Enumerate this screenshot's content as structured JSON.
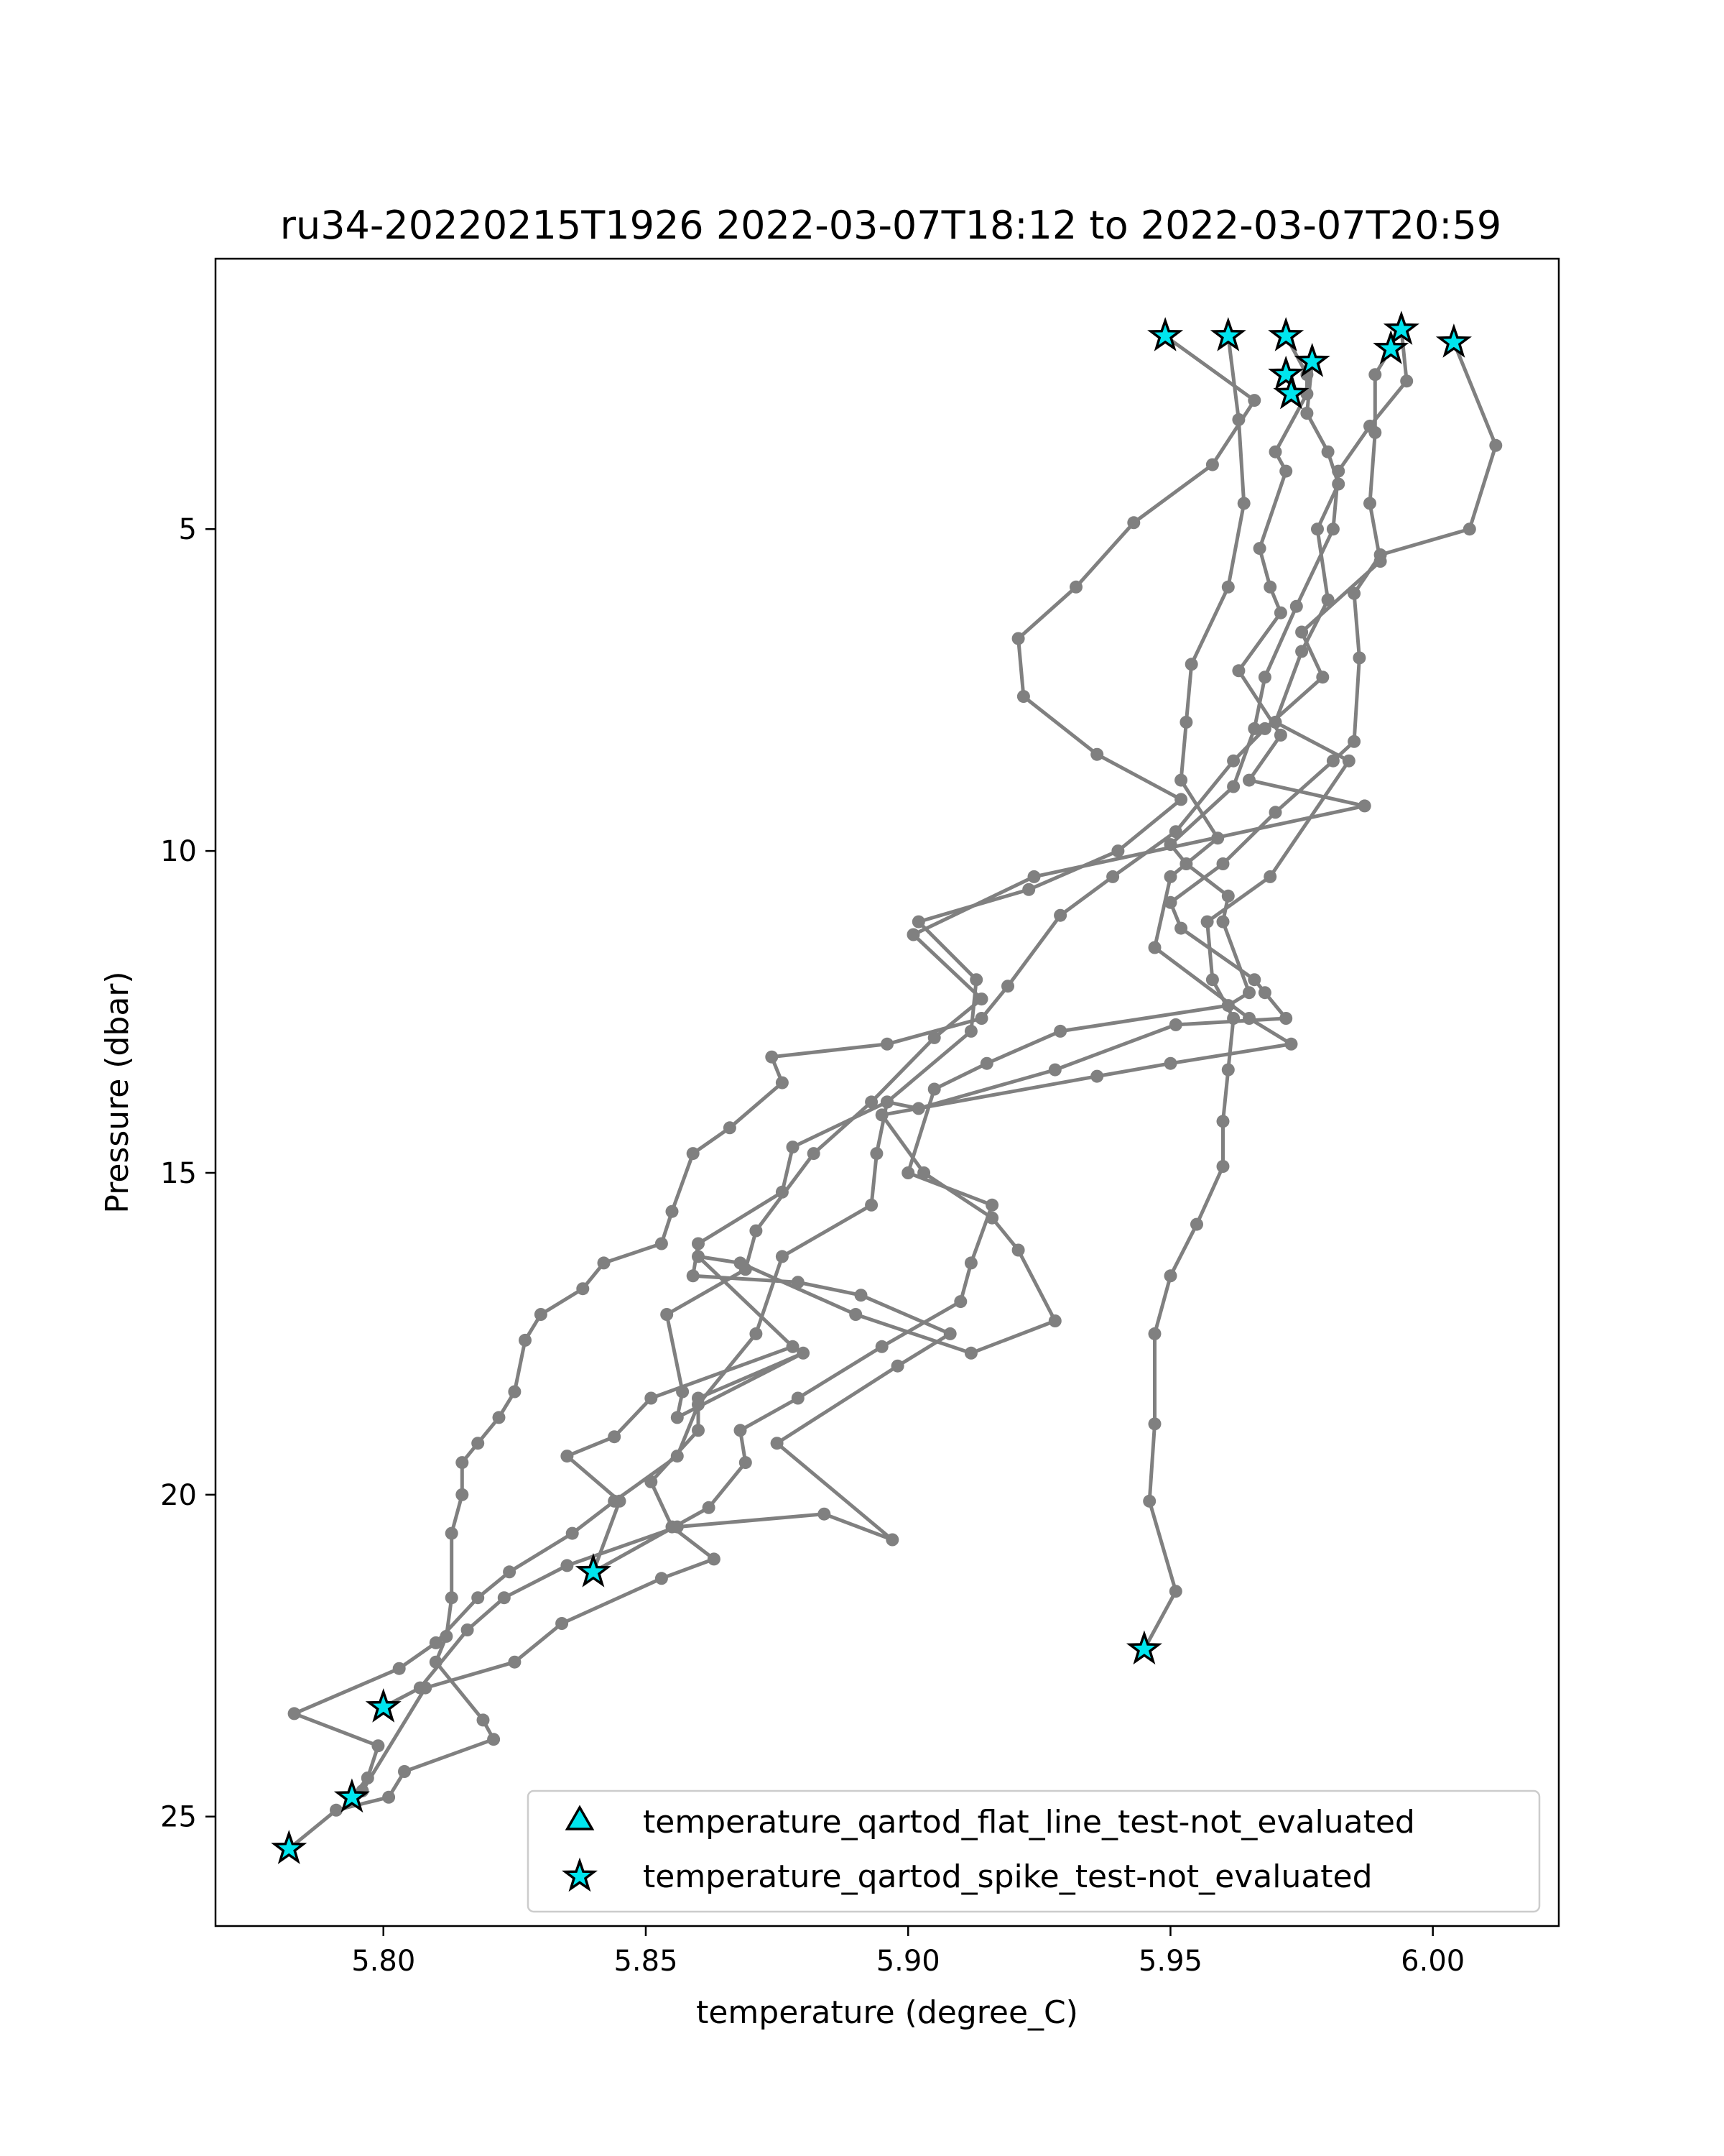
{
  "chart_data": {
    "type": "line",
    "title": "ru34-20220215T1926 2022-03-07T18:12 to 2022-03-07T20:59",
    "xlabel": "temperature (degree_C)",
    "ylabel": "Pressure (dbar)",
    "xlim": [
      5.768,
      6.024
    ],
    "ylim": [
      26.7,
      0.8
    ],
    "y_inverted": true,
    "x_ticks": [
      5.8,
      5.85,
      5.9,
      5.95,
      6.0
    ],
    "x_tick_labels": [
      "5.80",
      "5.85",
      "5.90",
      "5.95",
      "6.00"
    ],
    "y_ticks": [
      5,
      10,
      15,
      20,
      25
    ],
    "y_tick_labels": [
      "5",
      "10",
      "15",
      "20",
      "25"
    ],
    "grid": false,
    "legend_position": "lower-right",
    "colors": {
      "line": "#808080",
      "marker": "#808080",
      "flag_fill": "#00e5ee",
      "flag_edge": "#000000"
    },
    "legend": [
      {
        "marker": "triangle",
        "label": "temperature_qartod_flat_line_test-not_evaluated"
      },
      {
        "marker": "star",
        "label": "temperature_qartod_spike_test-not_evaluated"
      }
    ],
    "series": [
      {
        "points": [
          [
            5.949,
            2.0
          ],
          [
            5.966,
            3.0
          ],
          [
            5.958,
            4.0
          ],
          [
            5.943,
            4.9
          ],
          [
            5.932,
            5.9
          ],
          [
            5.921,
            6.7
          ],
          [
            5.922,
            7.6
          ],
          [
            5.936,
            8.5
          ],
          [
            5.952,
            9.2
          ],
          [
            5.94,
            10.0
          ],
          [
            5.923,
            10.6
          ],
          [
            5.902,
            11.1
          ],
          [
            5.913,
            12.0
          ],
          [
            5.912,
            12.8
          ],
          [
            5.896,
            13.9
          ],
          [
            5.894,
            14.7
          ],
          [
            5.893,
            15.5
          ],
          [
            5.876,
            16.3
          ],
          [
            5.871,
            17.5
          ],
          [
            5.86,
            18.6
          ],
          [
            5.856,
            19.4
          ],
          [
            5.844,
            20.1
          ],
          [
            5.836,
            20.6
          ],
          [
            5.824,
            21.2
          ],
          [
            5.818,
            21.6
          ],
          [
            5.81,
            22.3
          ],
          [
            5.803,
            22.7
          ],
          [
            5.783,
            23.4
          ],
          [
            5.799,
            23.9
          ],
          [
            5.797,
            24.4
          ],
          [
            5.794,
            24.7
          ]
        ]
      },
      {
        "points": [
          [
            5.961,
            2.0
          ],
          [
            5.963,
            3.3
          ],
          [
            5.964,
            4.6
          ],
          [
            5.961,
            5.9
          ],
          [
            5.954,
            7.1
          ],
          [
            5.953,
            8.0
          ],
          [
            5.952,
            8.9
          ],
          [
            5.959,
            9.8
          ],
          [
            5.95,
            10.4
          ],
          [
            5.947,
            11.5
          ],
          [
            5.965,
            12.6
          ],
          [
            5.973,
            13.0
          ],
          [
            5.95,
            13.3
          ],
          [
            5.936,
            13.5
          ],
          [
            5.895,
            14.1
          ],
          [
            5.903,
            15.0
          ],
          [
            5.916,
            15.7
          ],
          [
            5.921,
            16.2
          ],
          [
            5.928,
            17.3
          ],
          [
            5.912,
            17.8
          ],
          [
            5.89,
            17.2
          ],
          [
            5.868,
            16.4
          ],
          [
            5.86,
            16.3
          ],
          [
            5.878,
            17.7
          ],
          [
            5.851,
            18.5
          ],
          [
            5.844,
            19.1
          ],
          [
            5.835,
            19.4
          ],
          [
            5.845,
            20.1
          ],
          [
            5.84,
            21.2
          ]
        ]
      },
      {
        "points": [
          [
            5.972,
            2.0
          ],
          [
            5.976,
            2.6
          ],
          [
            5.976,
            2.9
          ],
          [
            5.97,
            3.8
          ],
          [
            5.972,
            4.1
          ],
          [
            5.967,
            5.3
          ],
          [
            5.969,
            5.9
          ],
          [
            5.971,
            6.3
          ],
          [
            5.963,
            7.2
          ],
          [
            5.971,
            8.2
          ],
          [
            5.965,
            8.9
          ],
          [
            5.987,
            9.3
          ],
          [
            5.924,
            10.4
          ],
          [
            5.901,
            11.3
          ],
          [
            5.914,
            12.3
          ],
          [
            5.905,
            12.9
          ],
          [
            5.893,
            13.9
          ],
          [
            5.882,
            14.7
          ],
          [
            5.871,
            15.9
          ],
          [
            5.869,
            16.5
          ],
          [
            5.854,
            17.2
          ],
          [
            5.857,
            18.4
          ],
          [
            5.856,
            18.8
          ],
          [
            5.88,
            17.8
          ],
          [
            5.86,
            18.5
          ],
          [
            5.86,
            19.0
          ],
          [
            5.851,
            19.8
          ],
          [
            5.855,
            20.5
          ],
          [
            5.863,
            21.0
          ],
          [
            5.853,
            21.3
          ],
          [
            5.834,
            22.0
          ],
          [
            5.825,
            22.6
          ],
          [
            5.808,
            23.0
          ],
          [
            5.796,
            24.6
          ]
        ]
      },
      {
        "points": [
          [
            5.977,
            2.4
          ],
          [
            5.976,
            3.2
          ],
          [
            5.98,
            3.8
          ],
          [
            5.982,
            4.3
          ],
          [
            5.978,
            5.0
          ],
          [
            5.98,
            6.1
          ],
          [
            5.975,
            6.9
          ],
          [
            5.97,
            8.0
          ],
          [
            5.984,
            8.6
          ],
          [
            5.969,
            10.4
          ],
          [
            5.957,
            11.1
          ],
          [
            5.958,
            12.0
          ],
          [
            5.962,
            12.6
          ],
          [
            5.961,
            13.4
          ],
          [
            5.96,
            14.2
          ],
          [
            5.96,
            14.9
          ],
          [
            5.955,
            15.8
          ],
          [
            5.95,
            16.6
          ],
          [
            5.947,
            17.5
          ],
          [
            5.947,
            18.9
          ],
          [
            5.946,
            20.1
          ],
          [
            5.951,
            21.5
          ],
          [
            5.945,
            22.4
          ]
        ]
      },
      {
        "points": [
          [
            5.994,
            1.9
          ],
          [
            5.995,
            2.7
          ],
          [
            5.988,
            3.4
          ],
          [
            5.982,
            4.1
          ],
          [
            5.981,
            5.0
          ],
          [
            5.974,
            6.2
          ],
          [
            5.968,
            7.3
          ],
          [
            5.966,
            8.1
          ],
          [
            5.962,
            9.0
          ],
          [
            5.95,
            9.9
          ],
          [
            5.953,
            10.2
          ],
          [
            5.961,
            10.7
          ],
          [
            5.96,
            11.1
          ],
          [
            5.965,
            12.2
          ],
          [
            5.961,
            12.4
          ],
          [
            5.929,
            12.8
          ],
          [
            5.915,
            13.3
          ],
          [
            5.905,
            13.7
          ],
          [
            5.9,
            15.0
          ],
          [
            5.916,
            15.5
          ],
          [
            5.912,
            16.4
          ],
          [
            5.91,
            17.0
          ],
          [
            5.895,
            17.7
          ],
          [
            5.879,
            18.5
          ],
          [
            5.868,
            19.0
          ],
          [
            5.869,
            19.5
          ],
          [
            5.862,
            20.2
          ],
          [
            5.84,
            21.2
          ]
        ]
      },
      {
        "points": [
          [
            6.004,
            2.1
          ],
          [
            6.012,
            3.7
          ],
          [
            6.007,
            5.0
          ],
          [
            5.99,
            5.4
          ],
          [
            5.985,
            6.0
          ],
          [
            5.986,
            7.0
          ],
          [
            5.985,
            8.3
          ],
          [
            5.981,
            8.6
          ],
          [
            5.97,
            9.4
          ],
          [
            5.96,
            10.2
          ],
          [
            5.95,
            10.8
          ],
          [
            5.952,
            11.2
          ],
          [
            5.966,
            12.0
          ],
          [
            5.968,
            12.2
          ],
          [
            5.972,
            12.6
          ],
          [
            5.951,
            12.7
          ],
          [
            5.928,
            13.4
          ],
          [
            5.902,
            14.0
          ],
          [
            5.896,
            13.9
          ],
          [
            5.878,
            14.6
          ],
          [
            5.876,
            15.3
          ],
          [
            5.86,
            16.1
          ],
          [
            5.859,
            16.6
          ],
          [
            5.879,
            16.7
          ],
          [
            5.891,
            16.9
          ],
          [
            5.908,
            17.5
          ],
          [
            5.898,
            18.0
          ],
          [
            5.875,
            19.2
          ],
          [
            5.897,
            20.7
          ],
          [
            5.884,
            20.3
          ],
          [
            5.856,
            20.5
          ],
          [
            5.835,
            21.1
          ],
          [
            5.823,
            21.6
          ],
          [
            5.816,
            22.1
          ],
          [
            5.807,
            23.0
          ],
          [
            5.8,
            23.3
          ]
        ]
      },
      {
        "points": [
          [
            5.992,
            2.2
          ],
          [
            5.989,
            2.6
          ],
          [
            5.989,
            3.5
          ],
          [
            5.988,
            4.6
          ],
          [
            5.99,
            5.5
          ],
          [
            5.975,
            6.6
          ],
          [
            5.979,
            7.3
          ],
          [
            5.968,
            8.1
          ],
          [
            5.962,
            8.6
          ],
          [
            5.951,
            9.7
          ],
          [
            5.939,
            10.4
          ],
          [
            5.929,
            11.0
          ],
          [
            5.919,
            12.1
          ],
          [
            5.914,
            12.6
          ],
          [
            5.896,
            13.0
          ],
          [
            5.874,
            13.2
          ],
          [
            5.876,
            13.6
          ],
          [
            5.866,
            14.3
          ],
          [
            5.859,
            14.7
          ],
          [
            5.855,
            15.6
          ],
          [
            5.853,
            16.1
          ],
          [
            5.842,
            16.4
          ],
          [
            5.838,
            16.8
          ],
          [
            5.83,
            17.2
          ],
          [
            5.827,
            17.6
          ],
          [
            5.825,
            18.4
          ],
          [
            5.822,
            18.8
          ],
          [
            5.818,
            19.2
          ],
          [
            5.815,
            19.5
          ],
          [
            5.815,
            20.0
          ],
          [
            5.813,
            20.6
          ],
          [
            5.813,
            21.6
          ],
          [
            5.812,
            22.2
          ],
          [
            5.81,
            22.6
          ],
          [
            5.819,
            23.5
          ],
          [
            5.821,
            23.8
          ],
          [
            5.804,
            24.3
          ],
          [
            5.801,
            24.7
          ],
          [
            5.791,
            24.9
          ],
          [
            5.782,
            25.5
          ]
        ]
      }
    ],
    "flags_spike": [
      [
        5.949,
        2.0
      ],
      [
        5.961,
        2.0
      ],
      [
        5.972,
        2.0
      ],
      [
        5.994,
        1.9
      ],
      [
        6.004,
        2.1
      ],
      [
        5.992,
        2.2
      ],
      [
        5.977,
        2.4
      ],
      [
        5.972,
        2.6
      ],
      [
        5.973,
        2.9
      ],
      [
        5.84,
        21.2
      ],
      [
        5.945,
        22.4
      ],
      [
        5.8,
        23.3
      ],
      [
        5.794,
        24.7
      ],
      [
        5.782,
        25.5
      ]
    ]
  }
}
